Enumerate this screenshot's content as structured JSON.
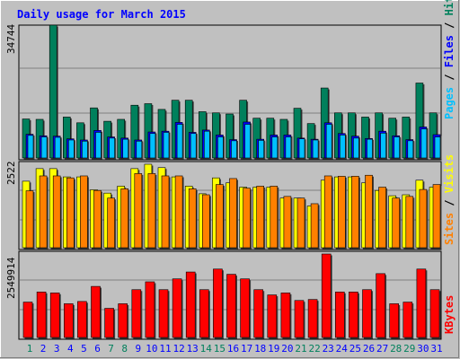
{
  "title": "Daily usage for March 2015",
  "colors": {
    "background": "#c0c0c0",
    "title": "#0000ff",
    "hits": "#00805c",
    "files": "#0000ff",
    "pages": "#00c0ff",
    "visits": "#ffff00",
    "sites": "#ff8000",
    "kbytes": "#ff0000",
    "weekday_label": "#0000ff",
    "weekend_label": "#00805c"
  },
  "chart_data": [
    {
      "type": "bar",
      "panel": "hits-files-pages",
      "legend": [
        "Pages",
        "Files",
        "Hits"
      ],
      "legend_separator": " / ",
      "legend_placement": "right",
      "max_label": "34744",
      "ylim": [
        0,
        34744
      ],
      "categories": [
        "1",
        "2",
        "3",
        "4",
        "5",
        "6",
        "7",
        "8",
        "9",
        "10",
        "11",
        "12",
        "13",
        "14",
        "15",
        "16",
        "17",
        "18",
        "19",
        "20",
        "21",
        "22",
        "23",
        "24",
        "25",
        "26",
        "27",
        "28",
        "29",
        "30",
        "31"
      ],
      "series": [
        {
          "name": "Hits",
          "values": [
            10200,
            10100,
            34744,
            10700,
            9200,
            13100,
            9600,
            10100,
            13800,
            14200,
            12700,
            15100,
            15100,
            12100,
            11800,
            11500,
            15100,
            10400,
            10400,
            10100,
            13000,
            9000,
            18300,
            11800,
            11800,
            10700,
            11800,
            10400,
            10700,
            19600,
            11800
          ]
        },
        {
          "name": "Files",
          "values": [
            6200,
            5800,
            5700,
            5000,
            4700,
            7200,
            5500,
            5200,
            4700,
            6800,
            7000,
            9300,
            6700,
            7300,
            6000,
            4800,
            9400,
            4900,
            6000,
            6000,
            5200,
            4900,
            9200,
            6400,
            5700,
            5100,
            7000,
            5800,
            4800,
            8100,
            6100
          ]
        },
        {
          "name": "Pages",
          "values": [
            5900,
            5500,
            5400,
            4700,
            4400,
            6700,
            5200,
            4900,
            4400,
            6400,
            6700,
            8800,
            6400,
            7000,
            5500,
            4500,
            8800,
            4600,
            5500,
            5500,
            5000,
            4700,
            8800,
            6000,
            5200,
            4900,
            6500,
            5500,
            4500,
            7600,
            5500
          ]
        }
      ]
    },
    {
      "type": "bar",
      "panel": "visits-sites",
      "legend": [
        "Sites",
        "Visits"
      ],
      "legend_separator": " / ",
      "legend_placement": "right",
      "max_label": "2522",
      "ylim": [
        0,
        2522
      ],
      "categories": [
        "1",
        "2",
        "3",
        "4",
        "5",
        "6",
        "7",
        "8",
        "9",
        "10",
        "11",
        "12",
        "13",
        "14",
        "15",
        "16",
        "17",
        "18",
        "19",
        "20",
        "21",
        "22",
        "23",
        "24",
        "25",
        "26",
        "27",
        "28",
        "29",
        "30",
        "31"
      ],
      "series": [
        {
          "name": "Visits",
          "values": [
            2010,
            2390,
            2390,
            2140,
            2140,
            1750,
            1650,
            1860,
            2390,
            2522,
            2420,
            2140,
            1860,
            1630,
            2110,
            1960,
            1830,
            1830,
            1830,
            1500,
            1500,
            1260,
            2040,
            2140,
            2140,
            1960,
            1730,
            1570,
            1600,
            2040,
            1830
          ]
        },
        {
          "name": "Sites",
          "values": [
            1720,
            2170,
            2170,
            2110,
            2170,
            1730,
            1500,
            1780,
            2240,
            2240,
            2170,
            2170,
            1780,
            1600,
            1910,
            2090,
            1800,
            1860,
            1860,
            1550,
            1500,
            1330,
            2170,
            2160,
            2160,
            2190,
            1830,
            1500,
            1550,
            1760,
            1910
          ]
        }
      ]
    },
    {
      "type": "bar",
      "panel": "kbytes",
      "legend": [
        "KBytes"
      ],
      "legend_placement": "right",
      "max_label": "2549914",
      "ylim": [
        0,
        2549914
      ],
      "categories": [
        "1",
        "2",
        "3",
        "4",
        "5",
        "6",
        "7",
        "8",
        "9",
        "10",
        "11",
        "12",
        "13",
        "14",
        "15",
        "16",
        "17",
        "18",
        "19",
        "20",
        "21",
        "22",
        "23",
        "24",
        "25",
        "26",
        "27",
        "28",
        "29",
        "30",
        "31"
      ],
      "series": [
        {
          "name": "KBytes",
          "values": [
            1080000,
            1390000,
            1360000,
            1030000,
            1100000,
            1560000,
            890000,
            1030000,
            1460000,
            1700000,
            1460000,
            1790000,
            2000000,
            1460000,
            2090000,
            1930000,
            1790000,
            1460000,
            1300000,
            1360000,
            1130000,
            1160000,
            2549914,
            1390000,
            1390000,
            1460000,
            1950000,
            1030000,
            1080000,
            2090000,
            1460000
          ]
        }
      ]
    }
  ],
  "x_labels": [
    {
      "label": "1",
      "weekend": true
    },
    {
      "label": "2",
      "weekend": false
    },
    {
      "label": "3",
      "weekend": false
    },
    {
      "label": "4",
      "weekend": false
    },
    {
      "label": "5",
      "weekend": false
    },
    {
      "label": "6",
      "weekend": false
    },
    {
      "label": "7",
      "weekend": true
    },
    {
      "label": "8",
      "weekend": true
    },
    {
      "label": "9",
      "weekend": false
    },
    {
      "label": "10",
      "weekend": false
    },
    {
      "label": "11",
      "weekend": false
    },
    {
      "label": "12",
      "weekend": false
    },
    {
      "label": "13",
      "weekend": false
    },
    {
      "label": "14",
      "weekend": true
    },
    {
      "label": "15",
      "weekend": true
    },
    {
      "label": "16",
      "weekend": false
    },
    {
      "label": "17",
      "weekend": false
    },
    {
      "label": "18",
      "weekend": false
    },
    {
      "label": "19",
      "weekend": false
    },
    {
      "label": "20",
      "weekend": false
    },
    {
      "label": "21",
      "weekend": true
    },
    {
      "label": "22",
      "weekend": true
    },
    {
      "label": "23",
      "weekend": false
    },
    {
      "label": "24",
      "weekend": false
    },
    {
      "label": "25",
      "weekend": false
    },
    {
      "label": "26",
      "weekend": false
    },
    {
      "label": "27",
      "weekend": false
    },
    {
      "label": "28",
      "weekend": true
    },
    {
      "label": "29",
      "weekend": true
    },
    {
      "label": "30",
      "weekend": false
    },
    {
      "label": "31",
      "weekend": false
    }
  ]
}
